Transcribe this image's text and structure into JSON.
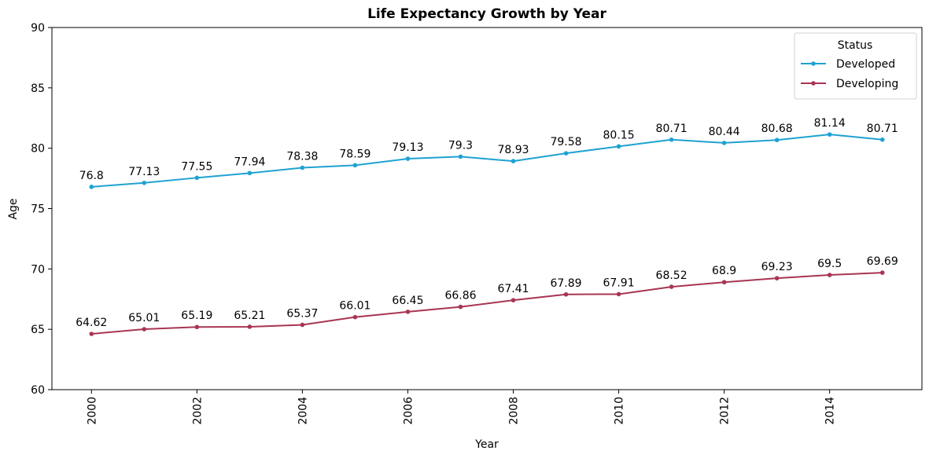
{
  "chart_data": {
    "type": "line",
    "title": "Life Expectancy Growth by Year",
    "xlabel": "Year",
    "ylabel": "Age",
    "x": [
      2000,
      2001,
      2002,
      2003,
      2004,
      2005,
      2006,
      2007,
      2008,
      2009,
      2010,
      2011,
      2012,
      2013,
      2014,
      2015
    ],
    "xlim": [
      1999.25,
      2015.75
    ],
    "ylim": [
      60,
      90
    ],
    "xticks": [
      "2000",
      "2002",
      "2004",
      "2006",
      "2008",
      "2010",
      "2012",
      "2014"
    ],
    "yticks": [
      "60",
      "65",
      "70",
      "75",
      "80",
      "85",
      "90"
    ],
    "grid": false,
    "legend": {
      "title": "Status",
      "placement": "top-right"
    },
    "series": [
      {
        "name": "Developed",
        "color": "#1fa2d2",
        "values": [
          76.8,
          77.13,
          77.55,
          77.94,
          78.38,
          78.59,
          79.13,
          79.3,
          78.93,
          79.58,
          80.15,
          80.71,
          80.44,
          80.68,
          81.14,
          80.71
        ],
        "labels": [
          "76.8",
          "77.13",
          "77.55",
          "77.94",
          "78.38",
          "78.59",
          "79.13",
          "79.3",
          "78.93",
          "79.58",
          "80.15",
          "80.71",
          "80.44",
          "80.68",
          "81.14",
          "80.71"
        ]
      },
      {
        "name": "Developing",
        "color": "#a83553",
        "values": [
          64.62,
          65.01,
          65.19,
          65.21,
          65.37,
          66.01,
          66.45,
          66.86,
          67.41,
          67.89,
          67.91,
          68.52,
          68.9,
          69.23,
          69.5,
          69.69
        ],
        "labels": [
          "64.62",
          "65.01",
          "65.19",
          "65.21",
          "65.37",
          "66.01",
          "66.45",
          "66.86",
          "67.41",
          "67.89",
          "67.91",
          "68.52",
          "68.9",
          "69.23",
          "69.5",
          "69.69"
        ]
      }
    ]
  }
}
